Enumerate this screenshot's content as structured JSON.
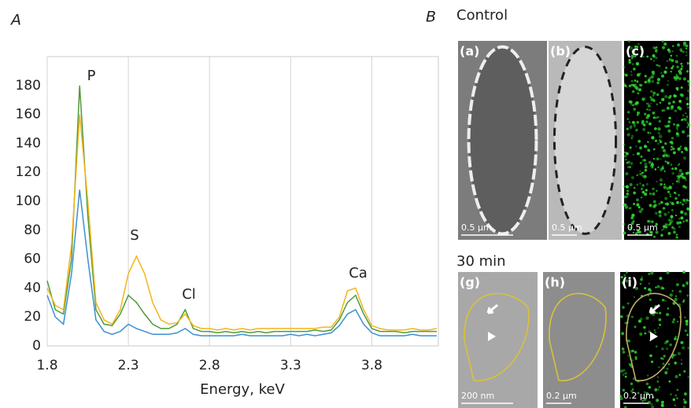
{
  "chart_data": {
    "type": "line",
    "panel_label": "A",
    "x_label": "Energy, keV",
    "x": [
      1.8,
      1.85,
      1.9,
      1.95,
      2.0,
      2.05,
      2.1,
      2.15,
      2.2,
      2.25,
      2.3,
      2.35,
      2.4,
      2.45,
      2.5,
      2.55,
      2.6,
      2.65,
      2.7,
      2.75,
      2.8,
      2.85,
      2.9,
      2.95,
      3.0,
      3.05,
      3.1,
      3.15,
      3.2,
      3.25,
      3.3,
      3.35,
      3.4,
      3.45,
      3.5,
      3.55,
      3.6,
      3.65,
      3.7,
      3.75,
      3.8,
      3.85,
      3.9,
      3.95,
      4.0,
      4.05,
      4.1,
      4.15,
      4.2
    ],
    "series": [
      {
        "color": "#4e9a3a",
        "values": [
          45,
          25,
          22,
          60,
          180,
          90,
          25,
          15,
          14,
          22,
          35,
          30,
          22,
          15,
          12,
          12,
          15,
          25,
          12,
          10,
          10,
          9,
          10,
          9,
          10,
          9,
          10,
          9,
          10,
          10,
          10,
          10,
          10,
          11,
          10,
          11,
          18,
          30,
          35,
          22,
          12,
          10,
          10,
          10,
          9,
          10,
          10,
          10,
          10
        ]
      },
      {
        "color": "#f2b51c",
        "values": [
          40,
          28,
          25,
          70,
          160,
          100,
          30,
          18,
          15,
          25,
          50,
          62,
          50,
          30,
          18,
          15,
          16,
          22,
          14,
          12,
          12,
          11,
          12,
          11,
          12,
          11,
          12,
          12,
          12,
          12,
          12,
          12,
          12,
          12,
          13,
          13,
          20,
          38,
          40,
          25,
          14,
          12,
          11,
          11,
          11,
          12,
          11,
          11,
          12
        ]
      },
      {
        "color": "#3d8fd1",
        "values": [
          35,
          20,
          15,
          50,
          108,
          60,
          18,
          10,
          8,
          10,
          15,
          12,
          10,
          8,
          8,
          8,
          9,
          12,
          8,
          7,
          7,
          7,
          7,
          7,
          8,
          7,
          7,
          7,
          7,
          7,
          8,
          7,
          8,
          7,
          8,
          9,
          14,
          22,
          25,
          15,
          9,
          7,
          7,
          7,
          7,
          8,
          7,
          7,
          7
        ]
      }
    ],
    "xlim": [
      1.8,
      4.21
    ],
    "ylim": [
      0,
      200
    ],
    "xticks": [
      1.8,
      2.3,
      2.8,
      3.3,
      3.8
    ],
    "yticks": [
      0,
      20,
      40,
      60,
      80,
      100,
      120,
      140,
      160,
      180
    ],
    "grid": "x",
    "annotations": [
      "P",
      "S",
      "Cl",
      "Ca"
    ]
  },
  "panel_b": {
    "label": "B",
    "rows": [
      {
        "title": "Control",
        "images": [
          {
            "label": "(a)",
            "scale": "0.5 µm"
          },
          {
            "label": "(b)",
            "scale": "0.5 µm"
          },
          {
            "label": "(c)",
            "scale": "0.5 µm"
          }
        ]
      },
      {
        "title": "30 min",
        "images": [
          {
            "label": "(g)",
            "scale": "200 nm"
          },
          {
            "label": "(h)",
            "scale": "0.2 µm"
          },
          {
            "label": "(i)",
            "scale": "0.2 µm"
          }
        ]
      }
    ]
  }
}
